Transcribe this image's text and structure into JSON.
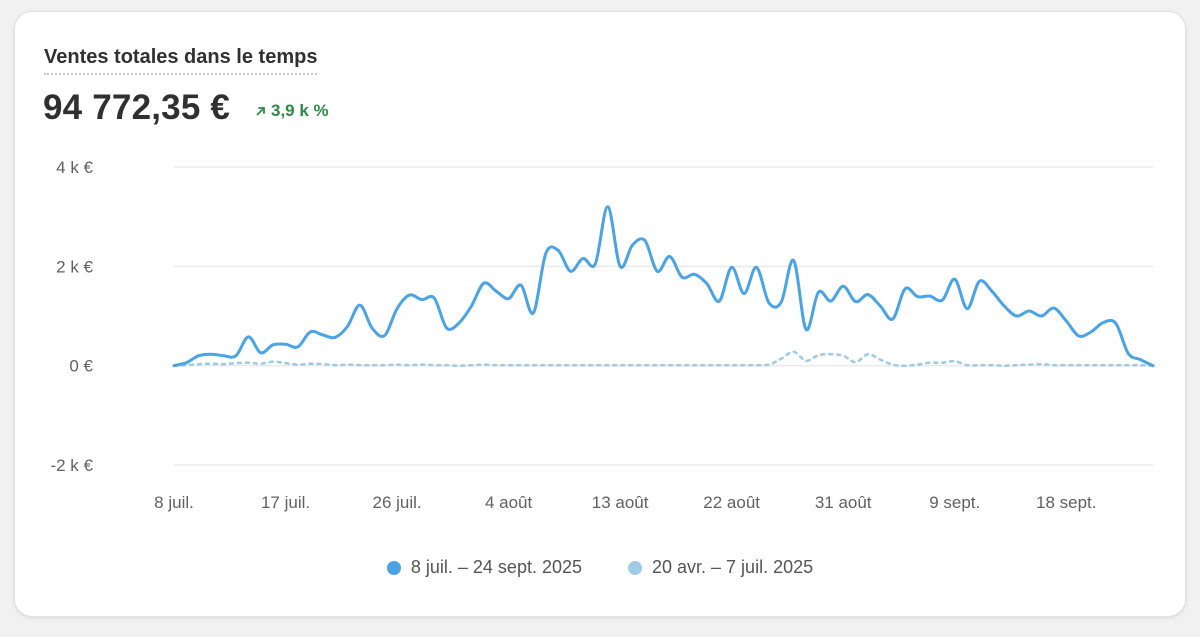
{
  "card": {
    "title": "Ventes totales dans le temps",
    "total": "94 772,35 €",
    "delta": "3,9 k %",
    "delta_icon": "arrow-up-right-icon"
  },
  "colors": {
    "current": "#4aa3e4",
    "previous": "#9fcbe9",
    "grid": "#e6e6e6",
    "positive": "#2d8a47",
    "axis_text": "#616161"
  },
  "chart_data": {
    "type": "line",
    "title": "Ventes totales dans le temps",
    "xlabel": "",
    "ylabel": "",
    "ylim": [
      -2000,
      4000
    ],
    "grid": true,
    "yticks": [
      {
        "value": 4000,
        "label": "4 k €"
      },
      {
        "value": 2000,
        "label": "2 k €"
      },
      {
        "value": 0,
        "label": "0 €"
      },
      {
        "value": -2000,
        "label": "-2 k €"
      }
    ],
    "xticks": [
      {
        "index": 0,
        "label": "8 juil."
      },
      {
        "index": 9,
        "label": "17 juil."
      },
      {
        "index": 18,
        "label": "26 juil."
      },
      {
        "index": 27,
        "label": "4 août"
      },
      {
        "index": 36,
        "label": "13 août"
      },
      {
        "index": 45,
        "label": "22 août"
      },
      {
        "index": 54,
        "label": "31 août"
      },
      {
        "index": 63,
        "label": "9 sept."
      },
      {
        "index": 72,
        "label": "18 sept."
      }
    ],
    "series": [
      {
        "name": "8 juil. – 24 sept. 2025",
        "style": "solid",
        "values": [
          0,
          60,
          200,
          230,
          200,
          200,
          580,
          260,
          420,
          430,
          380,
          680,
          620,
          570,
          790,
          1220,
          750,
          610,
          1150,
          1420,
          1330,
          1360,
          760,
          860,
          1200,
          1660,
          1500,
          1350,
          1620,
          1060,
          2260,
          2320,
          1900,
          2160,
          2050,
          3200,
          2000,
          2430,
          2520,
          1900,
          2200,
          1780,
          1840,
          1650,
          1300,
          1980,
          1450,
          1980,
          1270,
          1280,
          2120,
          730,
          1480,
          1300,
          1600,
          1290,
          1430,
          1200,
          940,
          1550,
          1390,
          1400,
          1320,
          1740,
          1150,
          1700,
          1500,
          1200,
          1000,
          1100,
          1000,
          1160,
          900,
          600,
          680,
          870,
          850,
          250,
          120,
          0
        ]
      },
      {
        "name": "20 avr. – 7 juil. 2025",
        "style": "dotted",
        "values": [
          0,
          10,
          30,
          40,
          30,
          50,
          60,
          40,
          80,
          50,
          20,
          40,
          30,
          10,
          20,
          10,
          10,
          10,
          20,
          10,
          20,
          10,
          10,
          0,
          10,
          20,
          10,
          10,
          10,
          10,
          10,
          10,
          10,
          10,
          10,
          10,
          10,
          10,
          10,
          10,
          10,
          10,
          10,
          10,
          10,
          10,
          10,
          10,
          20,
          140,
          280,
          100,
          210,
          230,
          200,
          70,
          230,
          120,
          20,
          0,
          20,
          60,
          60,
          90,
          10,
          10,
          10,
          0,
          10,
          20,
          30,
          10,
          10,
          10,
          10,
          10,
          10,
          10,
          10,
          0
        ]
      }
    ]
  }
}
